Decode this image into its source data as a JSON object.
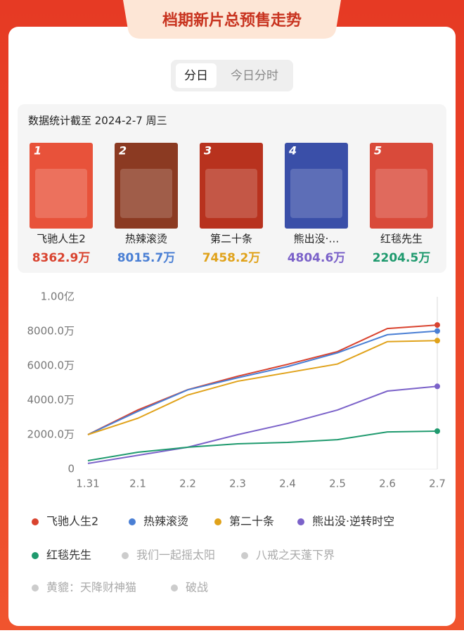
{
  "header": {
    "title": "档期新片总预售走势"
  },
  "tabs": [
    {
      "label": "分日",
      "active": true
    },
    {
      "label": "今日分时",
      "active": false
    }
  ],
  "stats": {
    "note": "数据统计截至 2024-2-7 周三",
    "cards": [
      {
        "rank": "1",
        "name": "飞驰人生2",
        "value": "8362.9万",
        "color": "#d9432f",
        "poster": "#e8523a"
      },
      {
        "rank": "2",
        "name": "热辣滚烫",
        "value": "8015.7万",
        "color": "#4a7fd4",
        "poster": "#8b3a22"
      },
      {
        "rank": "3",
        "name": "第二十条",
        "value": "7458.2万",
        "color": "#e0a21a",
        "poster": "#b8321e"
      },
      {
        "rank": "4",
        "name": "熊出没·…",
        "value": "4804.6万",
        "color": "#7b62c9",
        "poster": "#3a4fa8"
      },
      {
        "rank": "5",
        "name": "红毯先生",
        "value": "2204.5万",
        "color": "#1f9a6e",
        "poster": "#d94a3a"
      }
    ]
  },
  "chart_data": {
    "type": "line",
    "categories": [
      "1.31",
      "2.1",
      "2.2",
      "2.3",
      "2.4",
      "2.5",
      "2.6",
      "2.7"
    ],
    "ylim": [
      0,
      10000
    ],
    "yticks": [
      0,
      {
        "value": 2000,
        "label": "2000.0万"
      },
      {
        "value": 4000,
        "label": "4000.0万"
      },
      {
        "value": 6000,
        "label": "6000.0万"
      },
      {
        "value": 8000,
        "label": "8000.0万"
      },
      {
        "value": 10000,
        "label": "1.00亿"
      }
    ],
    "series": [
      {
        "name": "飞驰人生2",
        "color": "#d9432f",
        "values": [
          2000,
          3430,
          4610,
          5390,
          6080,
          6820,
          8160,
          8362.9
        ]
      },
      {
        "name": "热辣滚烫",
        "color": "#4a7fd4",
        "values": [
          2000,
          3350,
          4600,
          5300,
          5950,
          6750,
          7800,
          8015.7
        ]
      },
      {
        "name": "第二十条",
        "color": "#e0a21a",
        "values": [
          2000,
          2950,
          4300,
          5100,
          5600,
          6100,
          7400,
          7458.2
        ]
      },
      {
        "name": "熊出没·逆转时空",
        "color": "#7b62c9",
        "values": [
          330,
          800,
          1270,
          2000,
          2650,
          3430,
          4530,
          4804.6
        ]
      },
      {
        "name": "红毯先生",
        "color": "#1f9a6e",
        "values": [
          490,
          980,
          1270,
          1470,
          1550,
          1710,
          2160,
          2204.5
        ]
      },
      {
        "name": "我们一起摇太阳",
        "color": "#cccccc",
        "values": [
          null,
          null,
          null,
          null,
          null,
          null,
          null,
          null
        ]
      },
      {
        "name": "八戒之天蓬下界",
        "color": "#cccccc",
        "values": [
          null,
          null,
          null,
          null,
          null,
          null,
          null,
          null
        ]
      },
      {
        "name": "黄貔：天降财神猫",
        "color": "#cccccc",
        "values": [
          null,
          null,
          null,
          null,
          null,
          null,
          null,
          null
        ]
      },
      {
        "name": "破战",
        "color": "#cccccc",
        "values": [
          null,
          null,
          null,
          null,
          null,
          null,
          null,
          null
        ]
      }
    ]
  }
}
